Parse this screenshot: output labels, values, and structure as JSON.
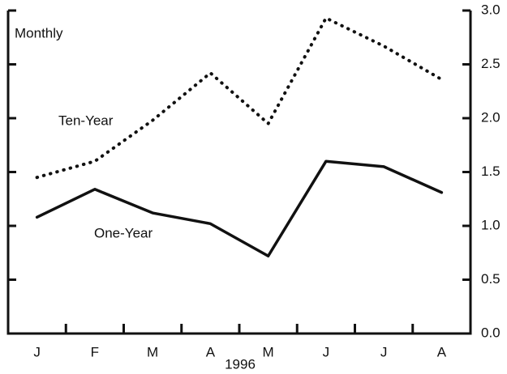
{
  "chart_data": {
    "type": "line",
    "categories": [
      "J",
      "F",
      "M",
      "A",
      "M",
      "J",
      "J",
      "A"
    ],
    "xlabel": "1996",
    "annotations": [
      "Monthly",
      "Ten-Year",
      "One-Year"
    ],
    "series": [
      {
        "name": "Ten-Year",
        "color": "#111111",
        "style": "dotted",
        "values": [
          1.45,
          1.6,
          1.98,
          2.42,
          1.95,
          2.93,
          2.67,
          2.36
        ]
      },
      {
        "name": "One-Year",
        "color": "#111111",
        "style": "solid",
        "values": [
          1.08,
          1.34,
          1.12,
          1.02,
          0.72,
          1.6,
          1.55,
          1.31
        ]
      }
    ],
    "ylim": [
      0,
      3
    ],
    "yticks": [
      {
        "value": 0,
        "label": "0.0"
      },
      0.5,
      {
        "value": 1,
        "label": "1.0"
      },
      1.5,
      {
        "value": 2,
        "label": "2.0"
      },
      2.5,
      {
        "value": 3,
        "label": "3.0"
      }
    ],
    "grid": false
  }
}
